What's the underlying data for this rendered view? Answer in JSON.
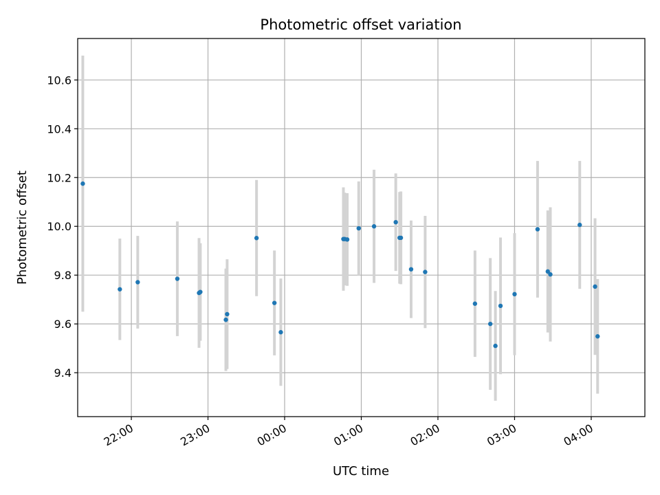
{
  "chart_data": {
    "type": "scatter",
    "title": "Photometric offset variation",
    "xlabel": "UTC time",
    "ylabel": "Photometric offset",
    "x_axis": "time",
    "xlim": [
      "21:18",
      "04:42"
    ],
    "ylim": [
      9.22,
      10.77
    ],
    "x_ticks": [
      "22:00",
      "23:00",
      "00:00",
      "01:00",
      "02:00",
      "03:00",
      "04:00"
    ],
    "y_ticks": [
      "9.4",
      "9.6",
      "9.8",
      "10.0",
      "10.2",
      "10.4",
      "10.6"
    ],
    "grid": true,
    "legend": "none",
    "colors": {
      "point": "#1f77b4",
      "errorbar": "#d3d3d3",
      "grid": "#b0b0b0"
    },
    "series": [
      {
        "points": [
          {
            "x": "21:22",
            "y": 10.175,
            "err": 0.525
          },
          {
            "x": "21:51",
            "y": 9.742,
            "err": 0.208
          },
          {
            "x": "22:05",
            "y": 9.771,
            "err": 0.19
          },
          {
            "x": "22:36",
            "y": 9.785,
            "err": 0.235
          },
          {
            "x": "22:53",
            "y": 9.727,
            "err": 0.225
          },
          {
            "x": "22:54",
            "y": 9.731,
            "err": 0.2
          },
          {
            "x": "23:14",
            "y": 9.617,
            "err": 0.21
          },
          {
            "x": "23:15",
            "y": 9.64,
            "err": 0.225
          },
          {
            "x": "23:38",
            "y": 9.952,
            "err": 0.238
          },
          {
            "x": "23:52",
            "y": 9.686,
            "err": 0.215
          },
          {
            "x": "23:57",
            "y": 9.566,
            "err": 0.22
          },
          {
            "x": "00:46",
            "y": 9.948,
            "err": 0.212
          },
          {
            "x": "00:47",
            "y": 9.948,
            "err": 0.19
          },
          {
            "x": "00:49",
            "y": 9.946,
            "err": 0.19
          },
          {
            "x": "00:58",
            "y": 9.992,
            "err": 0.192
          },
          {
            "x": "01:10",
            "y": 10.0,
            "err": 0.232
          },
          {
            "x": "01:27",
            "y": 10.017,
            "err": 0.2
          },
          {
            "x": "01:30",
            "y": 9.953,
            "err": 0.188
          },
          {
            "x": "01:31",
            "y": 9.953,
            "err": 0.19
          },
          {
            "x": "01:39",
            "y": 9.824,
            "err": 0.2
          },
          {
            "x": "01:50",
            "y": 9.813,
            "err": 0.23
          },
          {
            "x": "02:29",
            "y": 9.683,
            "err": 0.218
          },
          {
            "x": "02:41",
            "y": 9.6,
            "err": 0.27
          },
          {
            "x": "02:45",
            "y": 9.51,
            "err": 0.225
          },
          {
            "x": "02:49",
            "y": 9.674,
            "err": 0.28
          },
          {
            "x": "03:00",
            "y": 9.722,
            "err": 0.25
          },
          {
            "x": "03:18",
            "y": 9.988,
            "err": 0.28
          },
          {
            "x": "03:26",
            "y": 9.815,
            "err": 0.25
          },
          {
            "x": "03:28",
            "y": 9.803,
            "err": 0.275
          },
          {
            "x": "03:51",
            "y": 10.006,
            "err": 0.262
          },
          {
            "x": "04:03",
            "y": 9.753,
            "err": 0.28
          },
          {
            "x": "04:05",
            "y": 9.549,
            "err": 0.235
          }
        ]
      }
    ]
  }
}
